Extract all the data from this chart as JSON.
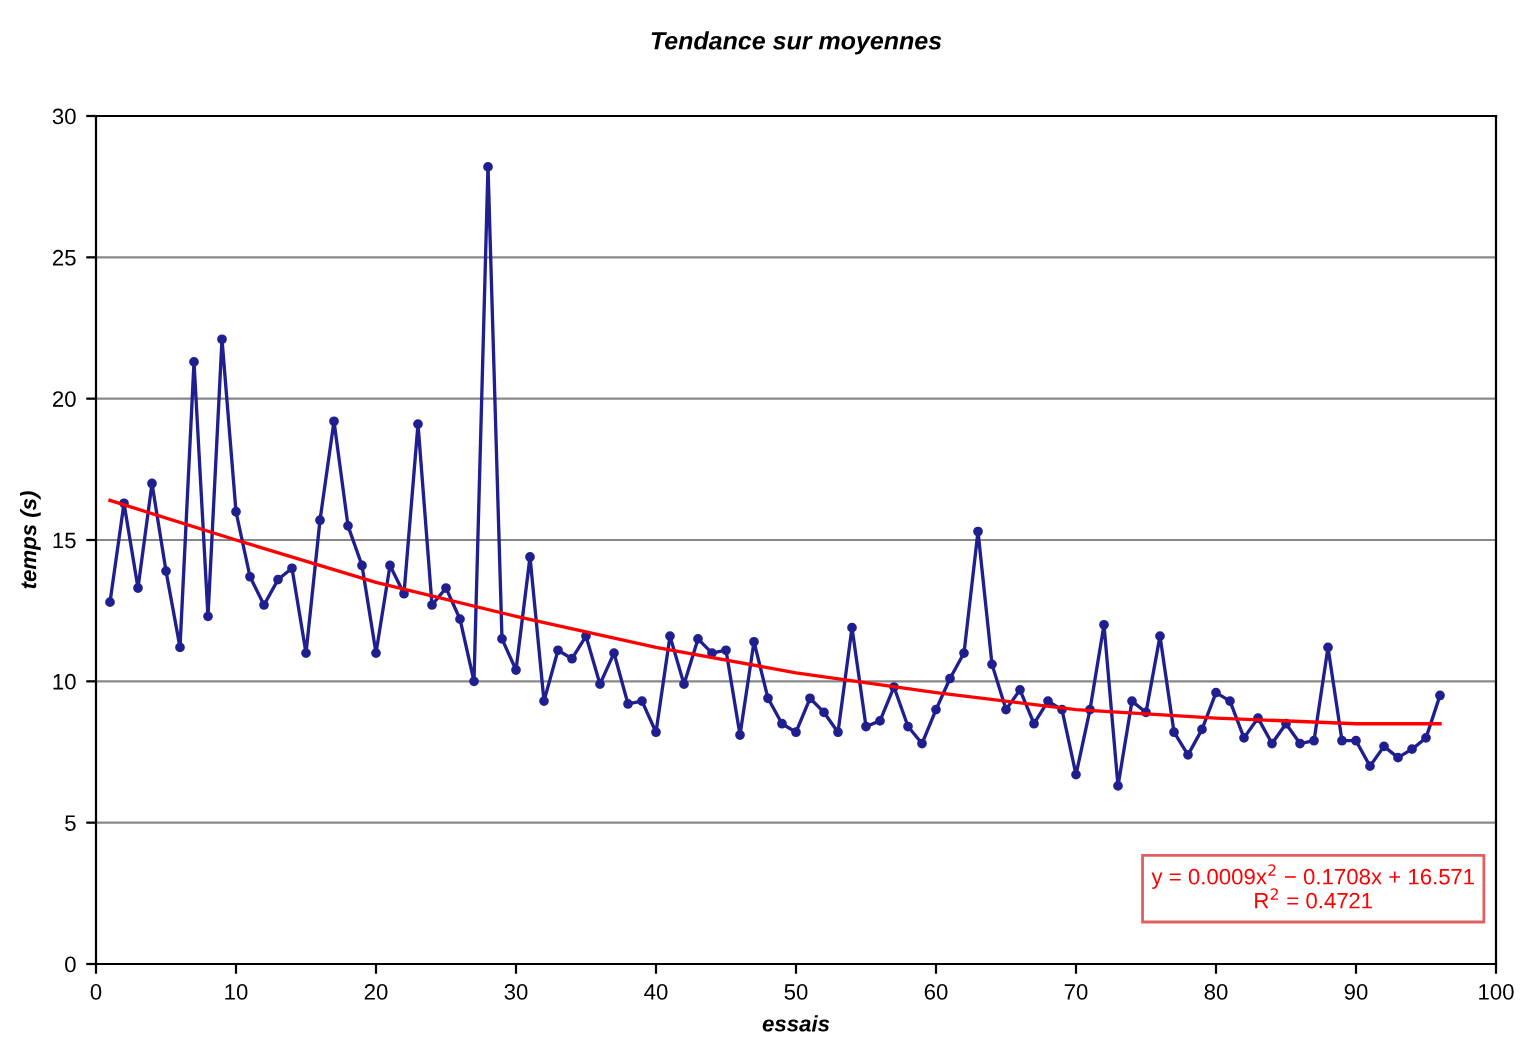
{
  "chart_data": {
    "type": "line",
    "title": "Tendance sur moyennes",
    "xlabel": "essais",
    "ylabel": "temps (s)",
    "x": [
      1,
      2,
      3,
      4,
      5,
      6,
      7,
      8,
      9,
      10,
      11,
      12,
      13,
      14,
      15,
      16,
      17,
      18,
      19,
      20,
      21,
      22,
      23,
      24,
      25,
      26,
      27,
      28,
      29,
      30,
      31,
      32,
      33,
      34,
      35,
      36,
      37,
      38,
      39,
      40,
      41,
      42,
      43,
      44,
      45,
      46,
      47,
      48,
      49,
      50,
      51,
      52,
      53,
      54,
      55,
      56,
      57,
      58,
      59,
      60,
      61,
      62,
      63,
      64,
      65,
      66,
      67,
      68,
      69,
      70,
      71,
      72,
      73,
      74,
      75,
      76,
      77,
      78,
      79,
      80,
      81,
      82,
      83,
      84,
      85,
      86,
      87,
      88,
      89,
      90,
      91,
      92,
      93,
      94,
      95,
      96
    ],
    "series": [
      {
        "color": "#1f1f8f",
        "marker": "circle",
        "values": [
          12.8,
          16.3,
          13.3,
          17.0,
          13.9,
          11.2,
          21.3,
          12.3,
          22.1,
          16.0,
          13.7,
          12.7,
          13.6,
          14.0,
          11.0,
          15.7,
          19.2,
          15.5,
          14.1,
          11.0,
          14.1,
          13.1,
          19.1,
          12.7,
          13.3,
          12.2,
          10.0,
          28.2,
          11.5,
          10.4,
          14.4,
          9.3,
          11.1,
          10.8,
          11.6,
          9.9,
          11.0,
          9.2,
          9.3,
          8.2,
          11.6,
          9.9,
          11.5,
          11.0,
          11.1,
          8.1,
          11.4,
          9.4,
          8.5,
          8.2,
          9.4,
          8.9,
          8.2,
          11.9,
          8.4,
          8.6,
          9.8,
          8.4,
          7.8,
          9.0,
          10.1,
          11.0,
          15.3,
          10.6,
          9.0,
          9.7,
          8.5,
          9.3,
          9.0,
          6.7,
          9.0,
          12.0,
          6.3,
          9.3,
          8.9,
          11.6,
          8.2,
          7.4,
          8.3,
          9.6,
          9.3,
          8.0,
          8.7,
          7.8,
          8.5,
          7.8,
          7.9,
          11.2,
          7.9,
          7.9,
          7.0,
          7.7,
          7.3,
          7.6,
          8.0,
          9.5
        ]
      },
      {
        "color": "#ff0000",
        "marker": "none",
        "x": [
          1,
          10,
          20,
          30,
          40,
          50,
          60,
          70,
          80,
          90,
          96
        ],
        "values": [
          16.4,
          15.0,
          13.5,
          12.3,
          11.2,
          10.3,
          9.6,
          9.0,
          8.7,
          8.5,
          8.5
        ]
      }
    ],
    "xlim": [
      0,
      100
    ],
    "xticks": [
      0,
      10,
      20,
      30,
      40,
      50,
      60,
      70,
      80,
      90,
      100
    ],
    "ylim": [
      0,
      30
    ],
    "yticks": [
      0,
      5,
      10,
      15,
      20,
      25,
      30
    ],
    "grid": "y",
    "legend": false,
    "line_style": "solid",
    "annotations": [
      "y = 0.0009x$^{2}$ − 0.1708x + 16.571\nR$^{2}$ = 0.4721"
    ]
  }
}
